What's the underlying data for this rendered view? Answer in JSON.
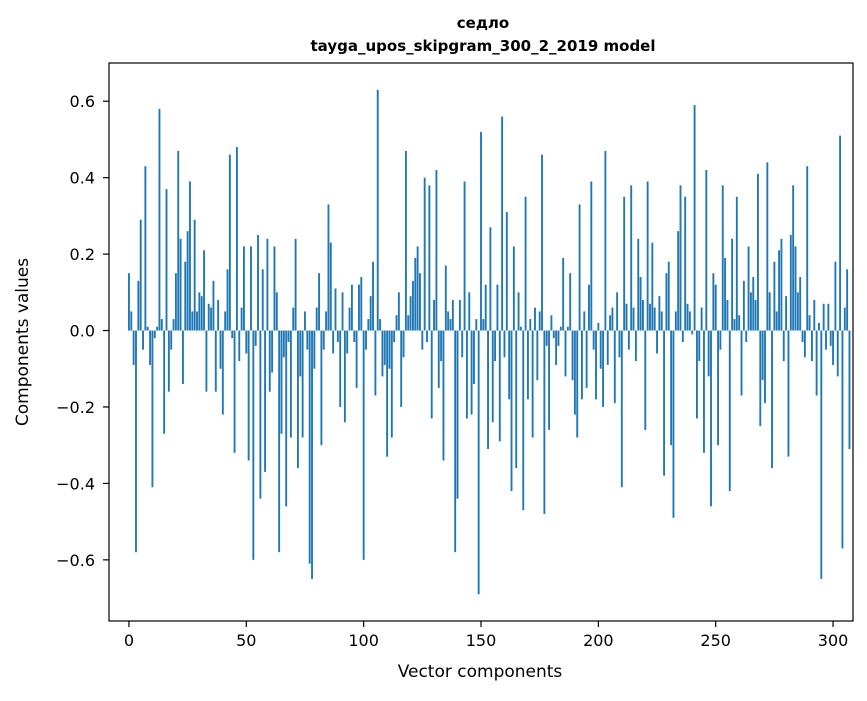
{
  "chart_data": {
    "type": "bar",
    "title": "седло",
    "subtitle": "tayga_upos_skipgram_300_2_2019 model",
    "xlabel": "Vector components",
    "ylabel": "Components values",
    "xlim": [
      -8.5,
      308.5
    ],
    "ylim": [
      -0.76,
      0.7
    ],
    "xticks": [
      0,
      50,
      100,
      150,
      200,
      250,
      300
    ],
    "yticks": [
      -0.6,
      -0.4,
      -0.2,
      0.0,
      0.2,
      0.4,
      0.6
    ],
    "ytick_labels": [
      "−0.6",
      "−0.4",
      "−0.2",
      "0.0",
      "0.2",
      "0.4",
      "0.6"
    ],
    "bar_color": "#1f77b4",
    "x_start": 0,
    "values": [
      0.15,
      0.05,
      -0.09,
      -0.58,
      0.13,
      0.29,
      -0.05,
      0.43,
      0.01,
      -0.09,
      -0.41,
      -0.02,
      0.01,
      0.58,
      0.03,
      -0.27,
      0.37,
      -0.16,
      -0.05,
      0.03,
      0.15,
      0.47,
      0.24,
      -0.14,
      0.18,
      0.26,
      0.39,
      0.05,
      0.29,
      0.05,
      0.1,
      0.09,
      0.21,
      -0.16,
      0.07,
      0.06,
      0.13,
      -0.16,
      0.08,
      -0.1,
      -0.22,
      0.05,
      0.16,
      0.46,
      -0.02,
      -0.32,
      0.48,
      -0.08,
      0.06,
      0.22,
      -0.06,
      -0.34,
      0.22,
      -0.6,
      -0.04,
      0.25,
      -0.44,
      0.16,
      -0.37,
      0.24,
      -0.16,
      -0.11,
      0.22,
      0.1,
      -0.58,
      -0.27,
      -0.07,
      -0.46,
      -0.03,
      -0.28,
      0.06,
      0.24,
      -0.36,
      -0.12,
      -0.28,
      0.05,
      -0.05,
      -0.61,
      -0.65,
      -0.1,
      0.06,
      0.15,
      -0.3,
      -0.05,
      0.05,
      0.33,
      0.23,
      -0.06,
      0.11,
      -0.03,
      -0.2,
      0.1,
      -0.24,
      -0.06,
      0.06,
      0.12,
      -0.03,
      -0.15,
      0.12,
      0.14,
      -0.6,
      -0.05,
      0.03,
      0.09,
      0.18,
      -0.17,
      0.63,
      0.03,
      -0.12,
      -0.09,
      -0.33,
      -0.1,
      -0.28,
      -0.03,
      0.04,
      0.1,
      -0.2,
      -0.07,
      0.47,
      0.04,
      0.09,
      0.13,
      0.19,
      0.22,
      0.15,
      -0.05,
      0.4,
      -0.03,
      0.38,
      -0.23,
      0.08,
      0.42,
      -0.15,
      -0.08,
      -0.34,
      0.17,
      0.05,
      0.03,
      0.08,
      -0.58,
      -0.44,
      0.08,
      -0.07,
      0.39,
      -0.23,
      0.1,
      -0.22,
      -0.14,
      0.03,
      -0.69,
      0.52,
      0.03,
      0.12,
      -0.31,
      0.27,
      -0.24,
      -0.08,
      0.12,
      -0.29,
      0.56,
      -0.07,
      0.31,
      -0.18,
      -0.42,
      0.22,
      -0.36,
      0.1,
      0.01,
      -0.47,
      0.35,
      -0.18,
      0.03,
      -0.28,
      0.06,
      -0.13,
      0.05,
      0.46,
      -0.48,
      -0.04,
      -0.26,
      0.04,
      -0.02,
      -0.09,
      -0.04,
      0.01,
      0.19,
      -0.12,
      0.01,
      0.15,
      -0.13,
      -0.22,
      -0.28,
      0.33,
      -0.18,
      0.05,
      -0.15,
      0.12,
      0.39,
      -0.05,
      -0.18,
      0.02,
      -0.1,
      -0.2,
      0.47,
      -0.09,
      0.04,
      0.06,
      -0.19,
      0.1,
      -0.07,
      -0.41,
      0.35,
      0.07,
      -0.05,
      0.38,
      0.06,
      -0.08,
      0.24,
      0.14,
      0.08,
      -0.26,
      0.39,
      0.07,
      0.23,
      0.06,
      -0.06,
      0.09,
      0.05,
      -0.38,
      0.15,
      0.18,
      -0.3,
      -0.49,
      0.05,
      0.26,
      0.38,
      -0.03,
      0.35,
      0.07,
      0.05,
      -0.01,
      0.59,
      -0.23,
      -0.08,
      0.06,
      -0.32,
      0.42,
      -0.12,
      -0.46,
      0.15,
      0.12,
      -0.3,
      -0.05,
      0.38,
      0.19,
      0.08,
      -0.42,
      0.24,
      0.03,
      0.35,
      0.04,
      -0.17,
      0.13,
      -0.03,
      0.22,
      0.1,
      0.14,
      0.08,
      0.41,
      -0.25,
      -0.13,
      -0.19,
      0.44,
      0.1,
      -0.36,
      0.18,
      0.05,
      0.21,
      0.24,
      -0.08,
      0.09,
      -0.33,
      0.25,
      0.38,
      0.22,
      0.1,
      0.14,
      -0.03,
      -0.07,
      0.43,
      0.04,
      -0.08,
      0.08,
      -0.17,
      0.02,
      -0.65,
      0.07,
      -0.05,
      0.07,
      -0.04,
      -0.09,
      0.18,
      -0.12,
      0.51,
      -0.57,
      0.06,
      0.16,
      -0.31
    ]
  }
}
